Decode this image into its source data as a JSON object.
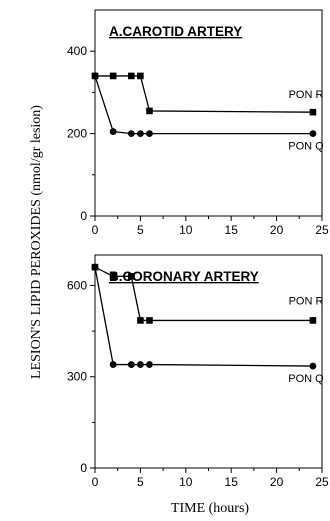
{
  "shared": {
    "ylabel": "LESION'S LIPID PEROXIDES (nmol/gr lesion)",
    "xlabel": "TIME (hours)"
  },
  "chart_data": [
    {
      "type": "line",
      "title": "A.CAROTID ARTERY",
      "xlim": [
        0,
        25
      ],
      "ylim": [
        0,
        500
      ],
      "xticks": [
        0,
        5,
        10,
        15,
        20,
        25
      ],
      "yticks": [
        0,
        200,
        400
      ],
      "series": [
        {
          "name": "PON R",
          "marker": "square",
          "x": [
            0,
            2,
            4,
            5,
            6,
            24
          ],
          "values": [
            340,
            340,
            340,
            340,
            255,
            252
          ]
        },
        {
          "name": "PON Q",
          "marker": "circle",
          "x": [
            0,
            2,
            4,
            5,
            6,
            24
          ],
          "values": [
            340,
            205,
            200,
            200,
            200,
            200
          ]
        }
      ]
    },
    {
      "type": "line",
      "title": "B.CORONARY ARTERY",
      "xlim": [
        0,
        25
      ],
      "ylim": [
        0,
        700
      ],
      "xticks": [
        0,
        5,
        10,
        15,
        20,
        25
      ],
      "yticks": [
        0,
        300,
        600
      ],
      "series": [
        {
          "name": "PON R",
          "marker": "square",
          "x": [
            0,
            2,
            4,
            5,
            6,
            24
          ],
          "values": [
            660,
            630,
            630,
            485,
            485,
            485
          ]
        },
        {
          "name": "PON Q",
          "marker": "circle",
          "x": [
            0,
            2,
            4,
            5,
            6,
            24
          ],
          "values": [
            660,
            340,
            340,
            340,
            340,
            335
          ]
        }
      ]
    }
  ]
}
